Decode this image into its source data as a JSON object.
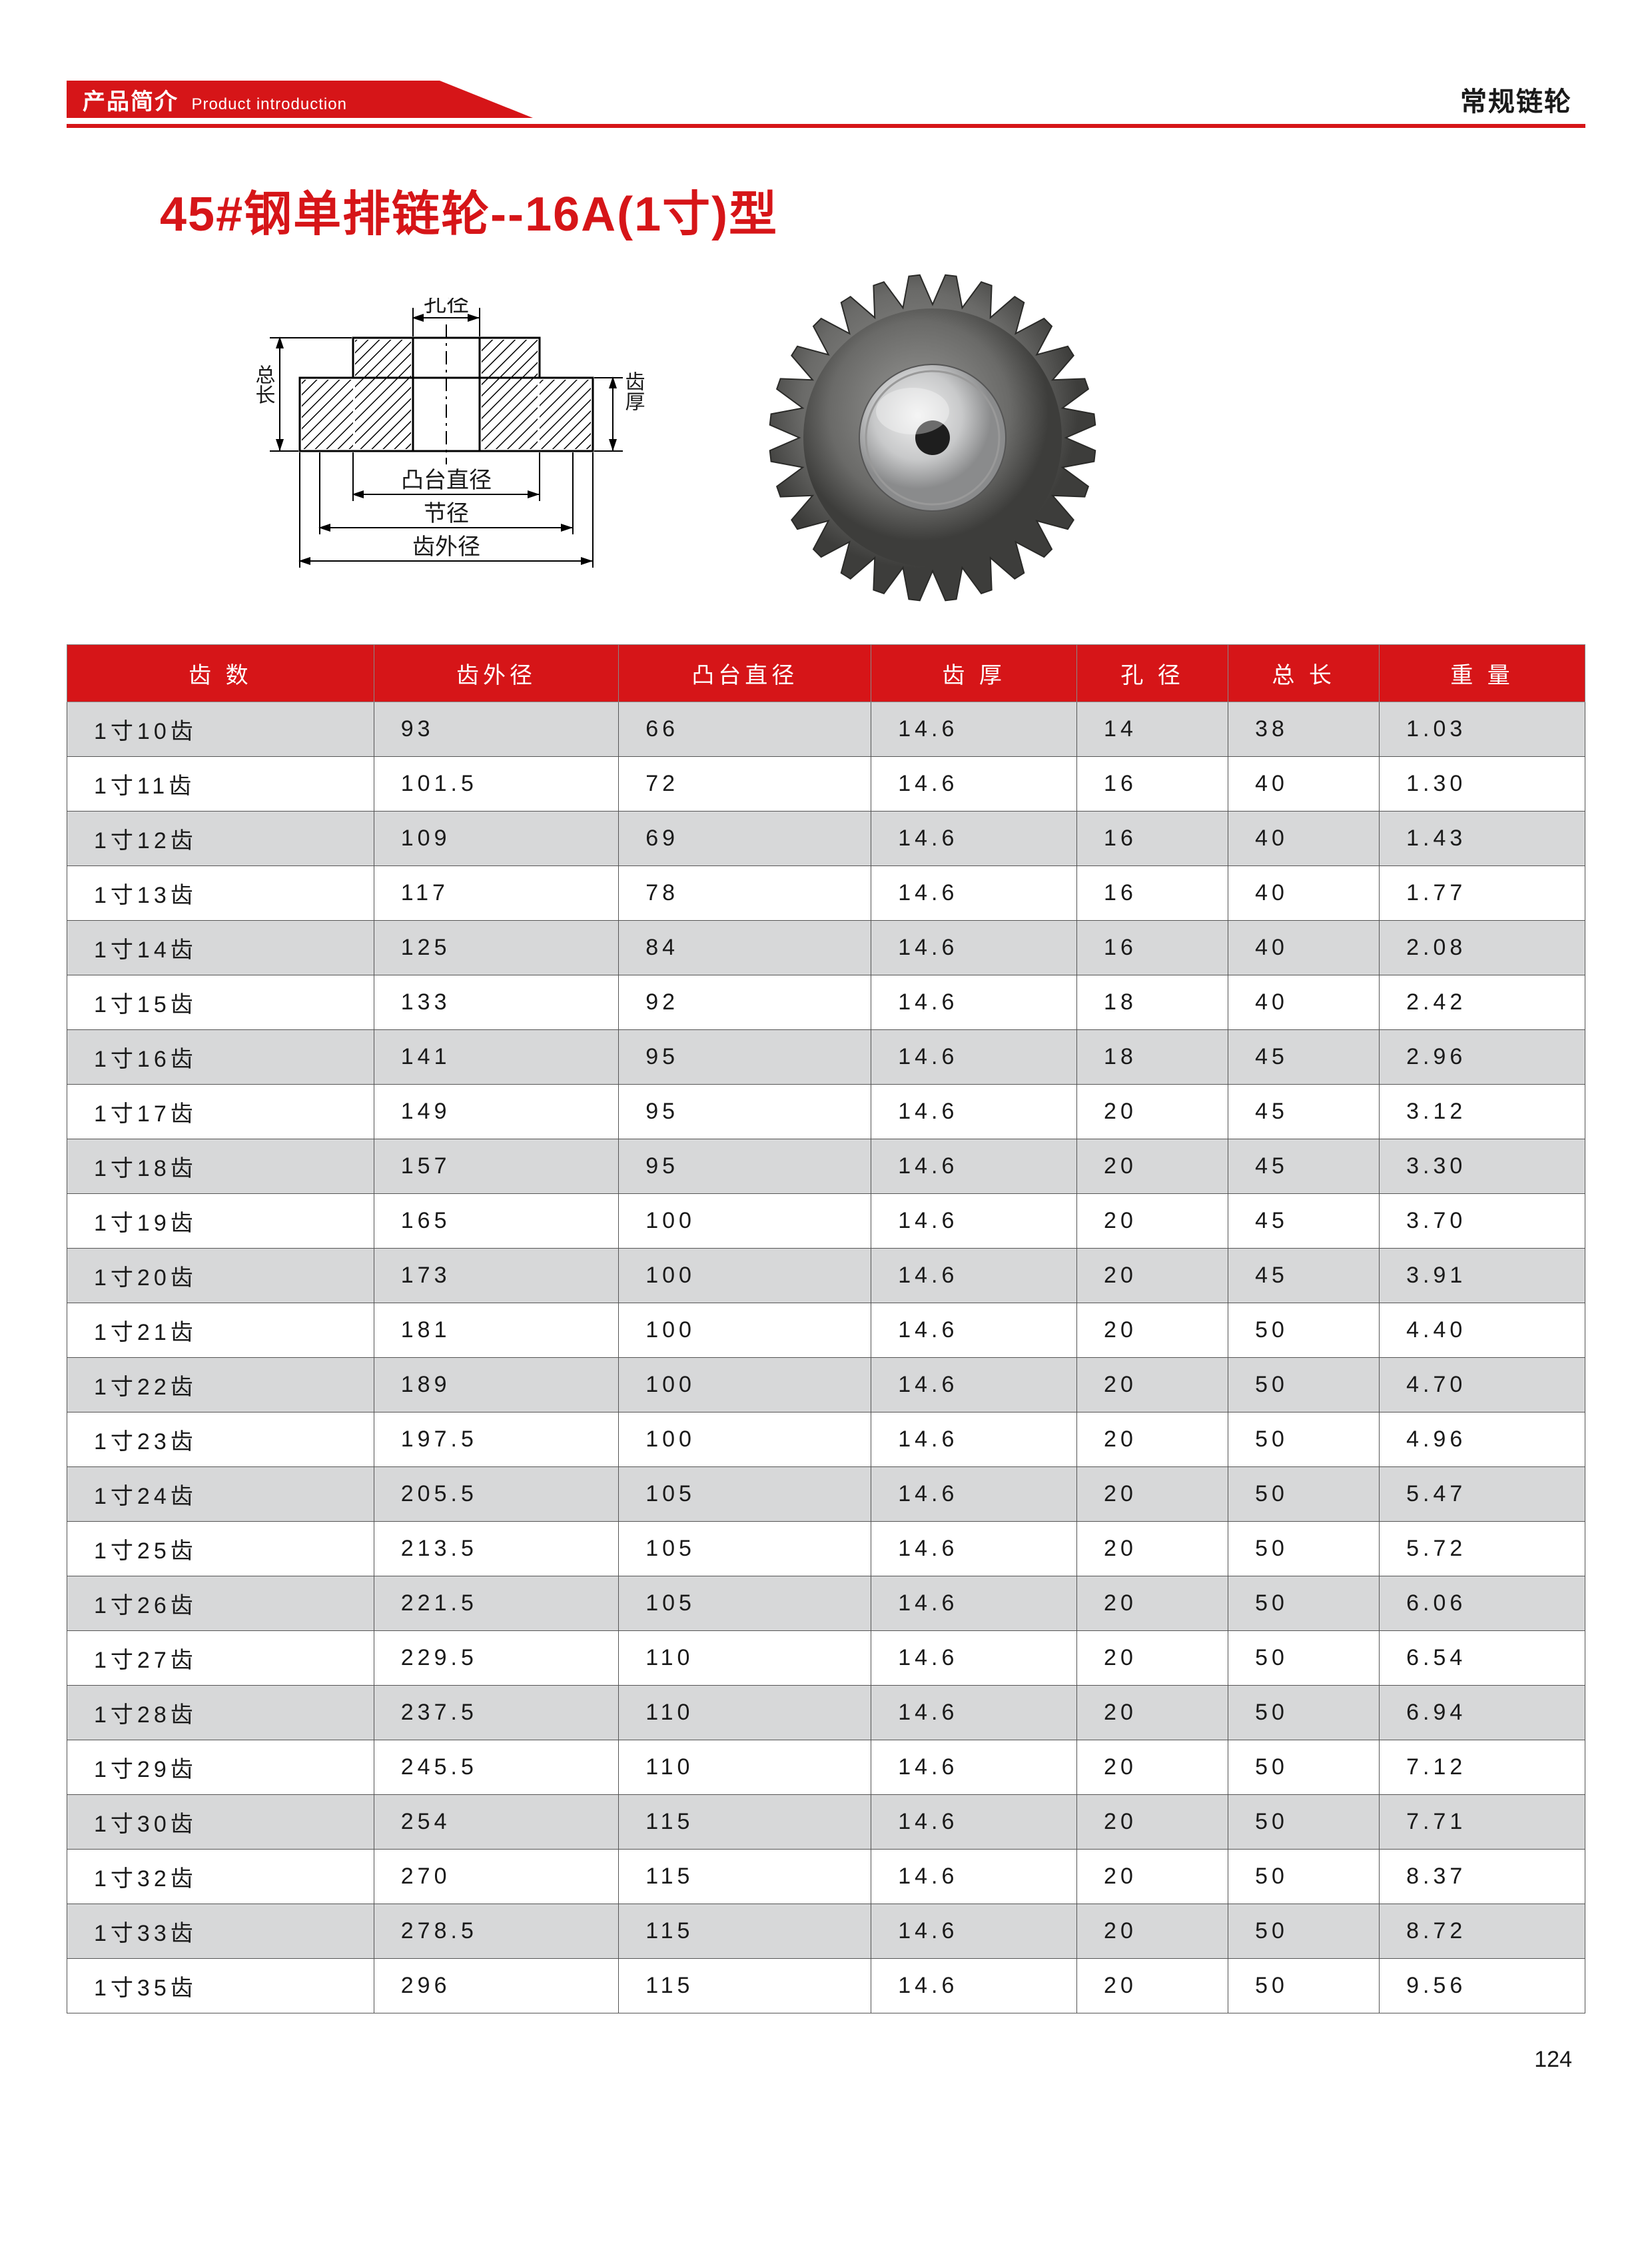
{
  "header": {
    "banner_cn": "产品简介",
    "banner_en": "Product introduction",
    "category": "常规链轮",
    "banner_color": "#d61518",
    "rule_color": "#d61518"
  },
  "title": "45#钢单排链轮--16A(1寸)型",
  "diagram": {
    "labels": {
      "bore": "孔径",
      "tooth_thick": "齿厚",
      "total_len": "总长",
      "hub_dia": "凸台直径",
      "pitch_dia": "节径",
      "outer_dia": "齿外径"
    }
  },
  "photo": {
    "desc": "steel sprocket with hub, approx 28 teeth",
    "teeth_shown": 28,
    "body_color": "#6a6a6a",
    "hub_color": "#c8c9ca"
  },
  "table": {
    "header_bg": "#d61518",
    "header_fg": "#ffffff",
    "row_odd_bg": "#d7d8d9",
    "row_even_bg": "#ffffff",
    "border_color": "#555555",
    "font_size": 34,
    "columns": [
      "齿 数",
      "齿外径",
      "凸台直径",
      "齿 厚",
      "孔 径",
      "总 长",
      "重 量"
    ],
    "rows": [
      [
        "1寸10齿",
        "93",
        "66",
        "14.6",
        "14",
        "38",
        "1.03"
      ],
      [
        "1寸11齿",
        "101.5",
        "72",
        "14.6",
        "16",
        "40",
        "1.30"
      ],
      [
        "1寸12齿",
        "109",
        "69",
        "14.6",
        "16",
        "40",
        "1.43"
      ],
      [
        "1寸13齿",
        "117",
        "78",
        "14.6",
        "16",
        "40",
        "1.77"
      ],
      [
        "1寸14齿",
        "125",
        "84",
        "14.6",
        "16",
        "40",
        "2.08"
      ],
      [
        "1寸15齿",
        "133",
        "92",
        "14.6",
        "18",
        "40",
        "2.42"
      ],
      [
        "1寸16齿",
        "141",
        "95",
        "14.6",
        "18",
        "45",
        "2.96"
      ],
      [
        "1寸17齿",
        "149",
        "95",
        "14.6",
        "20",
        "45",
        "3.12"
      ],
      [
        "1寸18齿",
        "157",
        "95",
        "14.6",
        "20",
        "45",
        "3.30"
      ],
      [
        "1寸19齿",
        "165",
        "100",
        "14.6",
        "20",
        "45",
        "3.70"
      ],
      [
        "1寸20齿",
        "173",
        "100",
        "14.6",
        "20",
        "45",
        "3.91"
      ],
      [
        "1寸21齿",
        "181",
        "100",
        "14.6",
        "20",
        "50",
        "4.40"
      ],
      [
        "1寸22齿",
        "189",
        "100",
        "14.6",
        "20",
        "50",
        "4.70"
      ],
      [
        "1寸23齿",
        "197.5",
        "100",
        "14.6",
        "20",
        "50",
        "4.96"
      ],
      [
        "1寸24齿",
        "205.5",
        "105",
        "14.6",
        "20",
        "50",
        "5.47"
      ],
      [
        "1寸25齿",
        "213.5",
        "105",
        "14.6",
        "20",
        "50",
        "5.72"
      ],
      [
        "1寸26齿",
        "221.5",
        "105",
        "14.6",
        "20",
        "50",
        "6.06"
      ],
      [
        "1寸27齿",
        "229.5",
        "110",
        "14.6",
        "20",
        "50",
        "6.54"
      ],
      [
        "1寸28齿",
        "237.5",
        "110",
        "14.6",
        "20",
        "50",
        "6.94"
      ],
      [
        "1寸29齿",
        "245.5",
        "110",
        "14.6",
        "20",
        "50",
        "7.12"
      ],
      [
        "1寸30齿",
        "254",
        "115",
        "14.6",
        "20",
        "50",
        "7.71"
      ],
      [
        "1寸32齿",
        "270",
        "115",
        "14.6",
        "20",
        "50",
        "8.37"
      ],
      [
        "1寸33齿",
        "278.5",
        "115",
        "14.6",
        "20",
        "50",
        "8.72"
      ],
      [
        "1寸35齿",
        "296",
        "115",
        "14.6",
        "20",
        "50",
        "9.56"
      ]
    ]
  },
  "page_number": "124"
}
